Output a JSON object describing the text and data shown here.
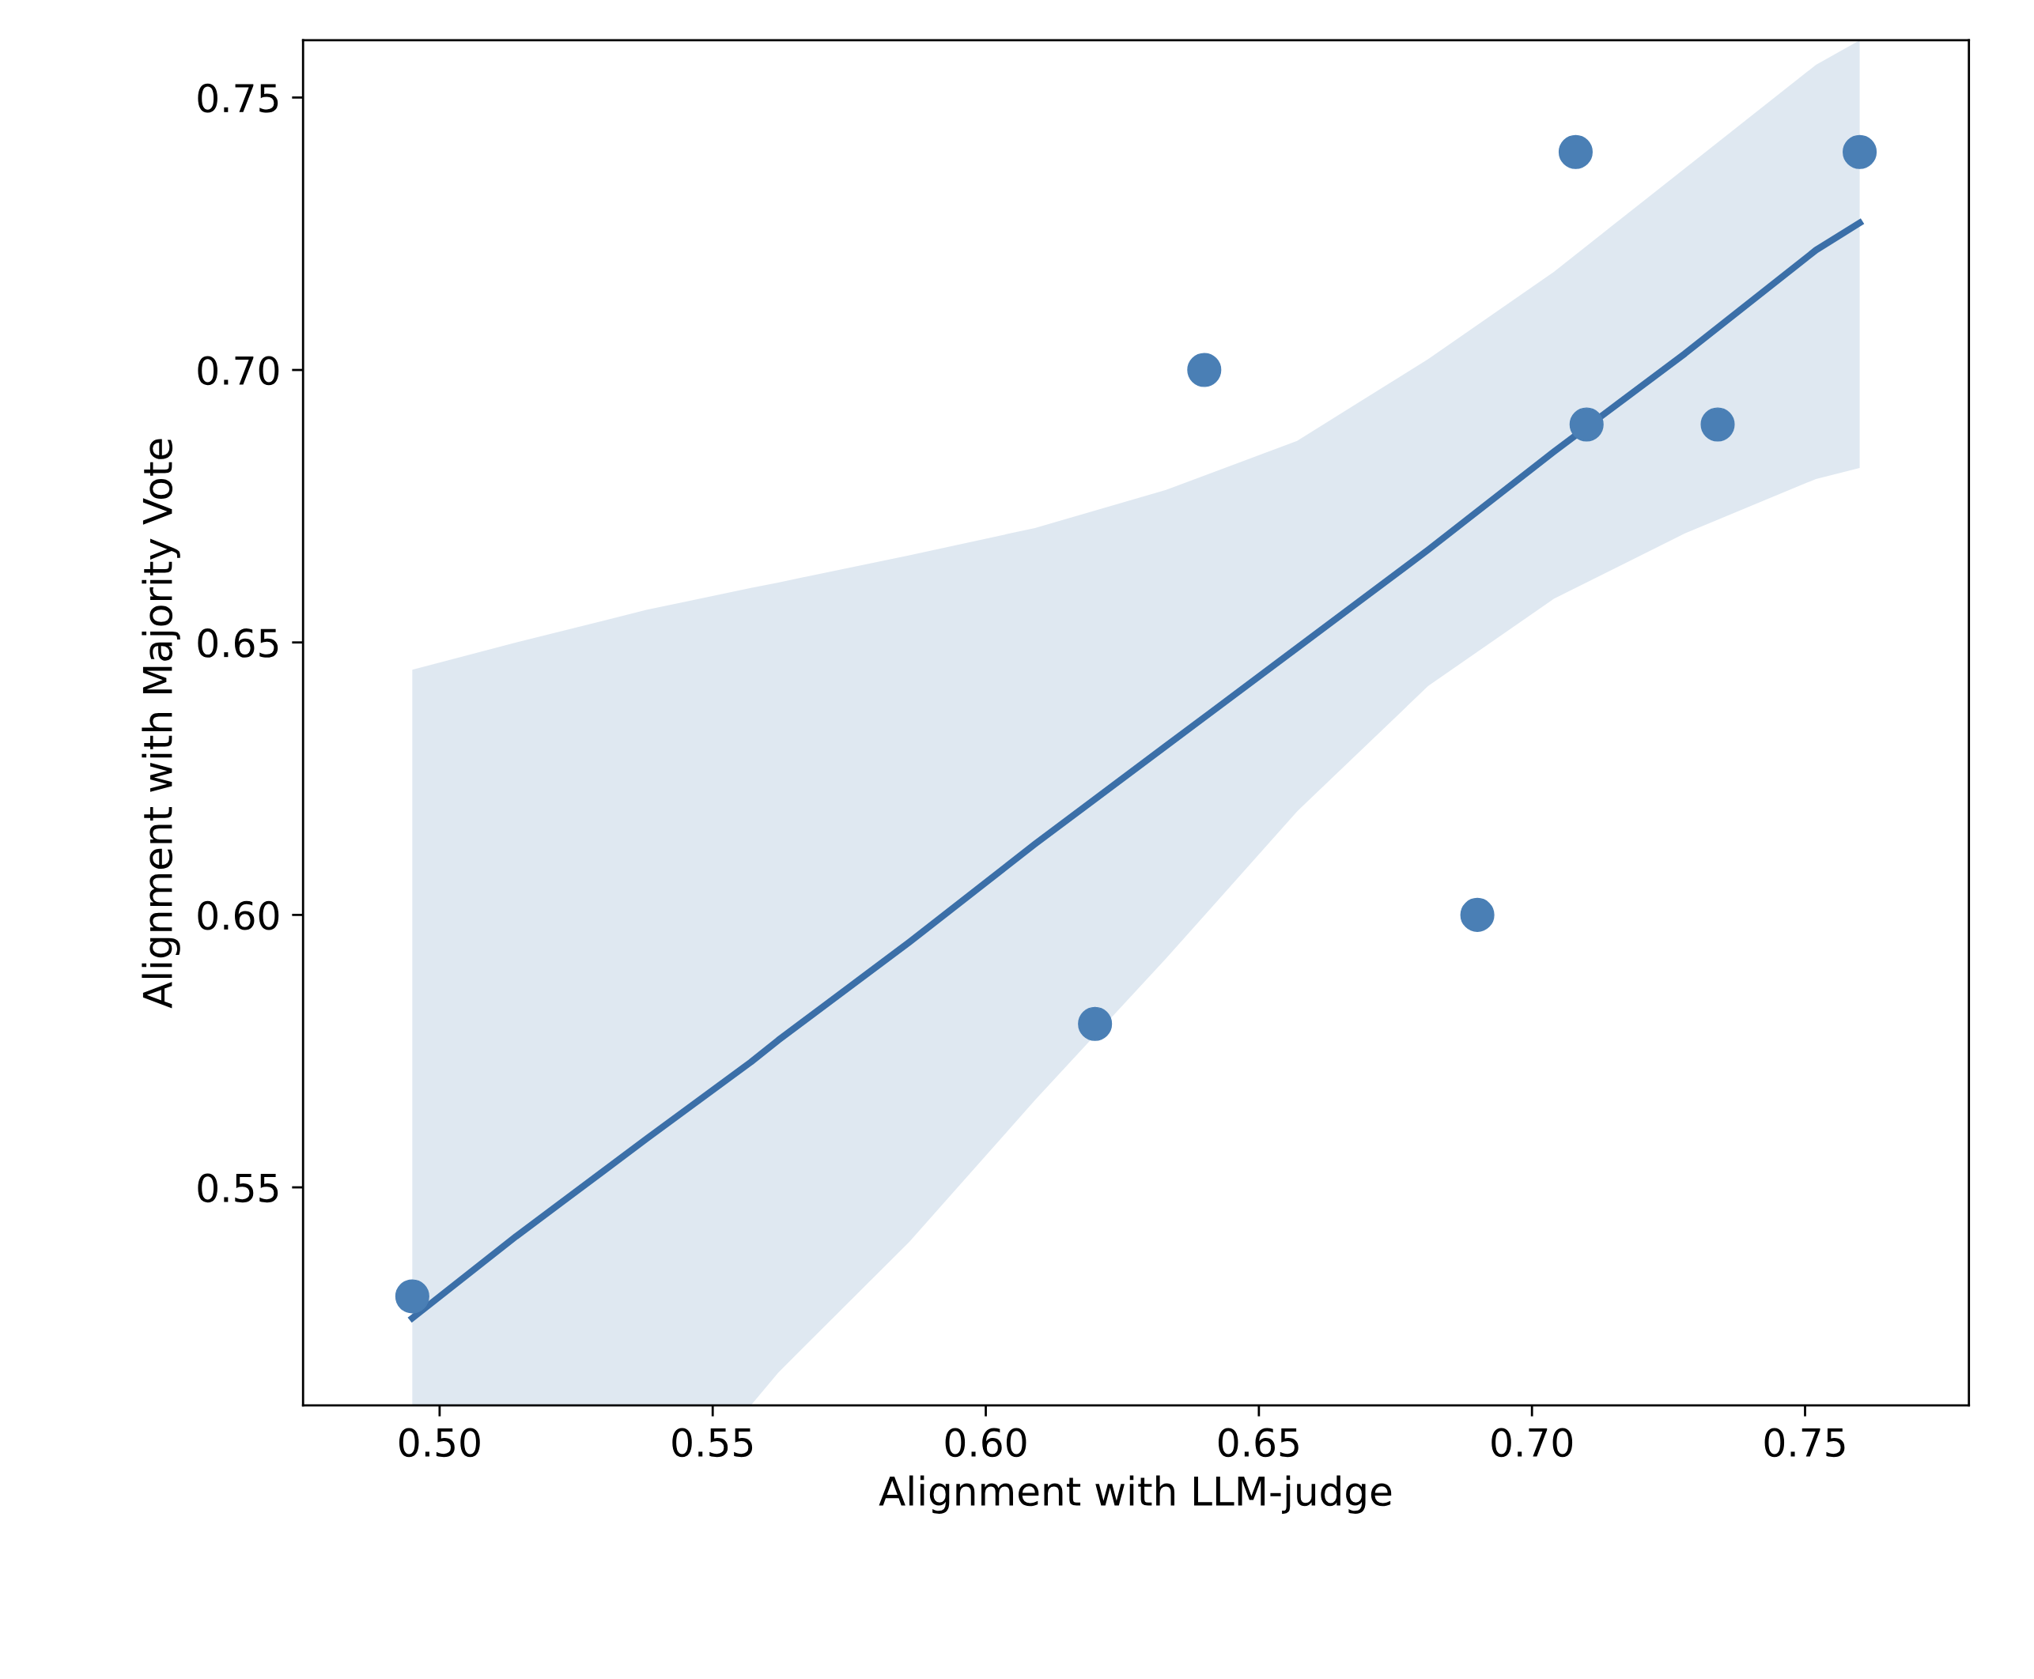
{
  "chart_data": {
    "type": "scatter",
    "xlabel": "Alignment with LLM-judge",
    "ylabel": "Alignment with Majority Vote",
    "xlim": [
      0.475,
      0.78
    ],
    "ylim": [
      0.51,
      0.7605
    ],
    "xticks": [
      {
        "value": 0.5,
        "label": "0.50"
      },
      {
        "value": 0.55,
        "label": "0.55"
      },
      {
        "value": 0.6,
        "label": "0.60"
      },
      {
        "value": 0.65,
        "label": "0.65"
      },
      {
        "value": 0.7,
        "label": "0.70"
      },
      {
        "value": 0.75,
        "label": "0.75"
      }
    ],
    "yticks": [
      {
        "value": 0.55,
        "label": "0.55"
      },
      {
        "value": 0.6,
        "label": "0.60"
      },
      {
        "value": 0.65,
        "label": "0.65"
      },
      {
        "value": 0.7,
        "label": "0.70"
      },
      {
        "value": 0.75,
        "label": "0.75"
      }
    ],
    "grid": false,
    "legend": false,
    "series": [
      {
        "type": "scatter",
        "marker": "circle",
        "color": "#4a7fb5",
        "x": [
          0.495,
          0.62,
          0.64,
          0.69,
          0.708,
          0.71,
          0.734,
          0.76
        ],
        "values": [
          0.53,
          0.58,
          0.7,
          0.6,
          0.74,
          0.69,
          0.69,
          0.74
        ]
      },
      {
        "type": "line",
        "color": "#3b6fa8",
        "x": [
          0.495,
          0.514,
          0.538,
          0.557,
          0.562,
          0.586,
          0.609,
          0.633,
          0.657,
          0.681,
          0.704,
          0.728,
          0.752,
          0.76
        ],
        "values": [
          0.526,
          0.541,
          0.559,
          0.573,
          0.577,
          0.595,
          0.613,
          0.631,
          0.649,
          0.667,
          0.685,
          0.703,
          0.722,
          0.727
        ],
        "lower": [
          0.51,
          0.51,
          0.51,
          0.51,
          0.516,
          0.54,
          0.566,
          0.592,
          0.619,
          0.642,
          0.658,
          0.67,
          0.68,
          0.682
        ],
        "upper": [
          0.645,
          0.65,
          0.656,
          0.66,
          0.661,
          0.666,
          0.671,
          0.678,
          0.687,
          0.702,
          0.718,
          0.737,
          0.756,
          0.7605
        ]
      }
    ]
  }
}
